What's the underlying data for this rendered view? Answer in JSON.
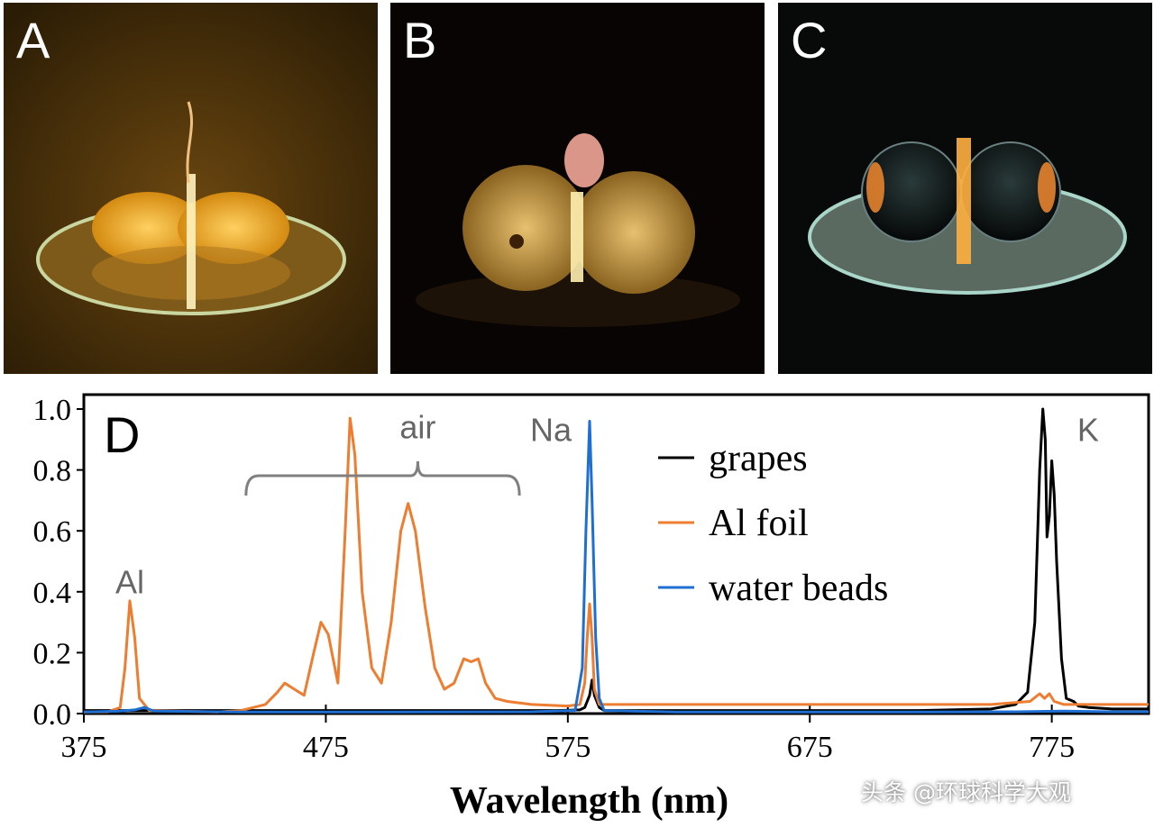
{
  "panels": [
    {
      "letter": "A"
    },
    {
      "letter": "B"
    },
    {
      "letter": "C"
    }
  ],
  "chart_data": {
    "type": "line",
    "panel_letter": "D",
    "title": "",
    "xlabel": "Wavelength (nm)",
    "ylabel": "",
    "xlim": [
      375,
      815
    ],
    "ylim": [
      0,
      1.0
    ],
    "xticks": [
      375,
      475,
      575,
      675,
      775
    ],
    "yticks": [
      0.0,
      0.2,
      0.4,
      0.6,
      0.8,
      1.0
    ],
    "ytick_labels": [
      "0.0",
      "0.2",
      "0.4",
      "0.6",
      "0.8",
      "1.0"
    ],
    "legend_position": "top-right",
    "series": [
      {
        "name": "grapes",
        "color": "#000000",
        "points": [
          [
            375,
            0.01
          ],
          [
            420,
            0.01
          ],
          [
            470,
            0.01
          ],
          [
            520,
            0.01
          ],
          [
            570,
            0.01
          ],
          [
            580,
            0.012
          ],
          [
            582,
            0.02
          ],
          [
            584,
            0.06
          ],
          [
            585,
            0.11
          ],
          [
            586,
            0.06
          ],
          [
            588,
            0.02
          ],
          [
            590,
            0.01
          ],
          [
            620,
            0.01
          ],
          [
            675,
            0.01
          ],
          [
            720,
            0.01
          ],
          [
            750,
            0.015
          ],
          [
            760,
            0.03
          ],
          [
            765,
            0.07
          ],
          [
            768,
            0.3
          ],
          [
            770,
            0.8
          ],
          [
            771.3,
            1.0
          ],
          [
            772.3,
            0.9
          ],
          [
            773,
            0.58
          ],
          [
            774,
            0.65
          ],
          [
            775,
            0.83
          ],
          [
            776,
            0.72
          ],
          [
            777,
            0.5
          ],
          [
            779,
            0.18
          ],
          [
            781,
            0.05
          ],
          [
            784,
            0.04
          ],
          [
            786,
            0.025
          ],
          [
            790,
            0.02
          ],
          [
            800,
            0.015
          ],
          [
            815,
            0.015
          ]
        ]
      },
      {
        "name": "Al foil",
        "color": "#ed7d31",
        "points": [
          [
            375,
            0.005
          ],
          [
            385,
            0.006
          ],
          [
            390,
            0.02
          ],
          [
            392,
            0.15
          ],
          [
            394,
            0.37
          ],
          [
            396,
            0.25
          ],
          [
            398,
            0.05
          ],
          [
            402,
            0.01
          ],
          [
            430,
            0.005
          ],
          [
            440,
            0.01
          ],
          [
            450,
            0.03
          ],
          [
            455,
            0.07
          ],
          [
            458,
            0.1
          ],
          [
            462,
            0.08
          ],
          [
            466,
            0.06
          ],
          [
            470,
            0.2
          ],
          [
            473,
            0.3
          ],
          [
            476,
            0.26
          ],
          [
            480,
            0.1
          ],
          [
            483,
            0.6
          ],
          [
            485,
            0.97
          ],
          [
            487,
            0.85
          ],
          [
            490,
            0.4
          ],
          [
            494,
            0.15
          ],
          [
            498,
            0.1
          ],
          [
            502,
            0.3
          ],
          [
            506,
            0.6
          ],
          [
            509,
            0.69
          ],
          [
            512,
            0.6
          ],
          [
            516,
            0.35
          ],
          [
            520,
            0.15
          ],
          [
            524,
            0.08
          ],
          [
            528,
            0.1
          ],
          [
            532,
            0.18
          ],
          [
            535,
            0.17
          ],
          [
            538,
            0.18
          ],
          [
            541,
            0.1
          ],
          [
            545,
            0.05
          ],
          [
            550,
            0.04
          ],
          [
            560,
            0.03
          ],
          [
            575,
            0.025
          ],
          [
            580,
            0.03
          ],
          [
            582,
            0.1
          ],
          [
            583,
            0.25
          ],
          [
            584,
            0.36
          ],
          [
            585,
            0.25
          ],
          [
            586,
            0.08
          ],
          [
            588,
            0.03
          ],
          [
            600,
            0.03
          ],
          [
            675,
            0.03
          ],
          [
            750,
            0.03
          ],
          [
            766,
            0.04
          ],
          [
            770,
            0.065
          ],
          [
            772,
            0.05
          ],
          [
            774,
            0.065
          ],
          [
            776,
            0.04
          ],
          [
            780,
            0.03
          ],
          [
            815,
            0.03
          ]
        ]
      },
      {
        "name": "water beads",
        "color": "#1f6fd2",
        "points": [
          [
            375,
            0.005
          ],
          [
            390,
            0.008
          ],
          [
            396,
            0.012
          ],
          [
            400,
            0.02
          ],
          [
            404,
            0.008
          ],
          [
            440,
            0.005
          ],
          [
            500,
            0.005
          ],
          [
            560,
            0.006
          ],
          [
            578,
            0.01
          ],
          [
            581,
            0.15
          ],
          [
            582.5,
            0.6
          ],
          [
            584,
            0.96
          ],
          [
            585,
            0.7
          ],
          [
            586.5,
            0.25
          ],
          [
            588,
            0.05
          ],
          [
            590,
            0.01
          ],
          [
            620,
            0.005
          ],
          [
            700,
            0.005
          ],
          [
            760,
            0.006
          ],
          [
            780,
            0.008
          ],
          [
            800,
            0.006
          ],
          [
            815,
            0.006
          ]
        ]
      }
    ],
    "annotations": [
      {
        "text": "Al",
        "x": 394,
        "y": 0.43
      },
      {
        "text": "air",
        "x": 513,
        "y": 0.94
      },
      {
        "text": "Na",
        "x": 568,
        "y": 0.93
      },
      {
        "text": "K",
        "x": 790,
        "y": 0.93
      }
    ],
    "bracket": {
      "x_start": 442,
      "x_end": 555
    }
  },
  "watermark": "头条 @环球科学大观"
}
